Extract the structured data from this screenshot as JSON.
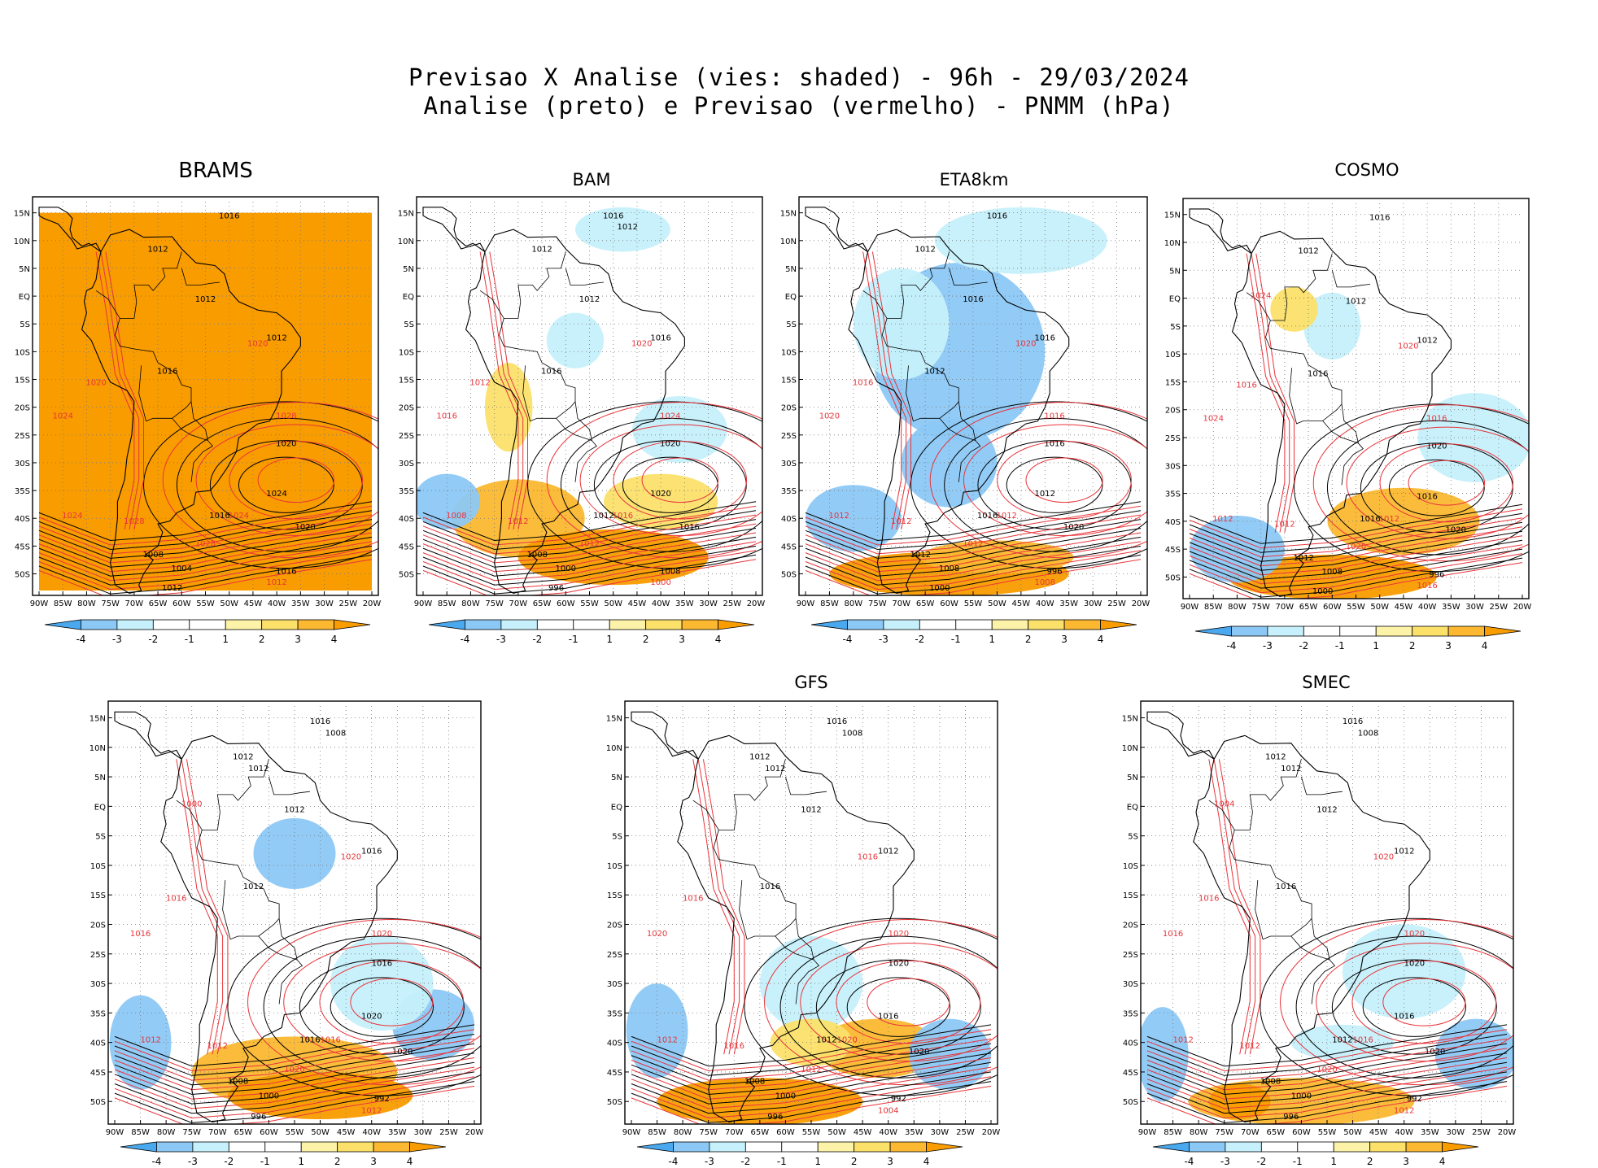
{
  "title": {
    "line1": "Previsao X Analise (vies: shaded) - 96h - 29/03/2024",
    "line2": "Analise (preto) e Previsao (vermelho) - PNMM (hPa)"
  },
  "colors": {
    "bias_neg4": "#4aa8ee",
    "bias_neg3": "#8cc8f5",
    "bias_neg2": "#c6f0fb",
    "bias_neg1": "#ffffff",
    "bias_pos1": "#fdf3a8",
    "bias_pos2": "#fbe06a",
    "bias_pos3": "#fbb830",
    "bias_pos4": "#f99c00",
    "analysis_contour": "#000000",
    "forecast_contour": "#e8343a",
    "land_outline": "#000000"
  },
  "axis": {
    "lat_ticks": [
      "15N",
      "10N",
      "5N",
      "EQ",
      "5S",
      "10S",
      "15S",
      "20S",
      "25S",
      "30S",
      "35S",
      "40S",
      "45S",
      "50S"
    ],
    "lon_ticks": [
      "90W",
      "85W",
      "80W",
      "75W",
      "70W",
      "65W",
      "60W",
      "55W",
      "50W",
      "45W",
      "40W",
      "35W",
      "30W",
      "25W",
      "20W"
    ]
  },
  "colorbar": {
    "labels": [
      "-4",
      "-3",
      "-2",
      "-1",
      "1",
      "2",
      "3",
      "4"
    ]
  },
  "panels": [
    {
      "model": "BRAMS",
      "dominant_bias": "pos4",
      "analysis_labels": [
        "1016",
        "1012",
        "1012",
        "1012",
        "1016",
        "1020",
        "1024",
        "1020",
        "1016",
        "1008",
        "1004",
        "1012",
        "1016"
      ],
      "forecast_labels": [
        "1020",
        "1024",
        "1028",
        "1024",
        "1028",
        "1020",
        "1024",
        "1028",
        "1012"
      ]
    },
    {
      "model": "BAM",
      "dominant_bias": "mixed",
      "analysis_labels": [
        "1016",
        "1012",
        "1012",
        "1016",
        "1016",
        "1020",
        "1020",
        "1016",
        "1012",
        "1008",
        "1000",
        "996",
        "1008",
        "1012"
      ],
      "forecast_labels": [
        "1012",
        "1008",
        "1012",
        "1016",
        "1024",
        "1020",
        "1016",
        "1012",
        "1000"
      ]
    },
    {
      "model": "ETA8km",
      "dominant_bias": "neg",
      "analysis_labels": [
        "1016",
        "1012",
        "1016",
        "1016",
        "1012",
        "1016",
        "1012",
        "1020",
        "1016",
        "1012",
        "1008",
        "1000",
        "996"
      ],
      "forecast_labels": [
        "1016",
        "1012",
        "1012",
        "1012",
        "1016",
        "1020",
        "1020",
        "1012",
        "1008"
      ]
    },
    {
      "model": "COSMO",
      "dominant_bias": "mixed",
      "analysis_labels": [
        "1016",
        "1012",
        "1012",
        "1012",
        "1016",
        "1020",
        "1016",
        "1020",
        "1016",
        "1012",
        "1008",
        "1000",
        "996"
      ],
      "forecast_labels": [
        "1016",
        "1012",
        "1012",
        "1012",
        "1016",
        "1020",
        "1024",
        "1020",
        "1016",
        "1024"
      ]
    },
    {
      "model": "",
      "dominant_bias": "mixed",
      "analysis_labels": [
        "1016",
        "1012",
        "1012",
        "1016",
        "1012",
        "1016",
        "1020",
        "1020",
        "1016",
        "1008",
        "1000",
        "996",
        "992",
        "1008",
        "1012"
      ],
      "forecast_labels": [
        "1016",
        "1012",
        "1012",
        "1016",
        "1020",
        "1020",
        "1016",
        "1020",
        "1012",
        "1000"
      ]
    },
    {
      "model": "GFS",
      "dominant_bias": "mixed",
      "analysis_labels": [
        "1016",
        "1012",
        "1012",
        "1012",
        "1016",
        "1020",
        "1016",
        "1020",
        "1012",
        "1008",
        "1000",
        "996",
        "992",
        "1008",
        "1012"
      ],
      "forecast_labels": [
        "1016",
        "1012",
        "1016",
        "1020",
        "1020",
        "1016",
        "1020",
        "1012",
        "1004"
      ]
    },
    {
      "model": "SMEC",
      "dominant_bias": "mixed",
      "analysis_labels": [
        "1016",
        "1012",
        "1012",
        "1012",
        "1016",
        "1020",
        "1016",
        "1020",
        "1012",
        "1008",
        "1000",
        "996",
        "992",
        "1008",
        "1012"
      ],
      "forecast_labels": [
        "1016",
        "1012",
        "1012",
        "1016",
        "1020",
        "1020",
        "1016",
        "1020",
        "1012",
        "1004"
      ]
    }
  ]
}
